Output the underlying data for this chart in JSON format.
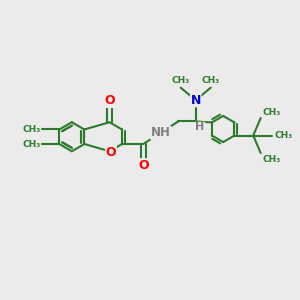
{
  "background_color": "#ebebeb",
  "bond_color": "#2d7a2d",
  "bond_lw": 1.5,
  "O_color": "#ff0000",
  "N_color": "#0000cc",
  "H_color": "#808080",
  "figsize": [
    3.0,
    3.0
  ],
  "dpi": 100,
  "xlim": [
    0,
    10
  ],
  "ylim": [
    0,
    10
  ]
}
